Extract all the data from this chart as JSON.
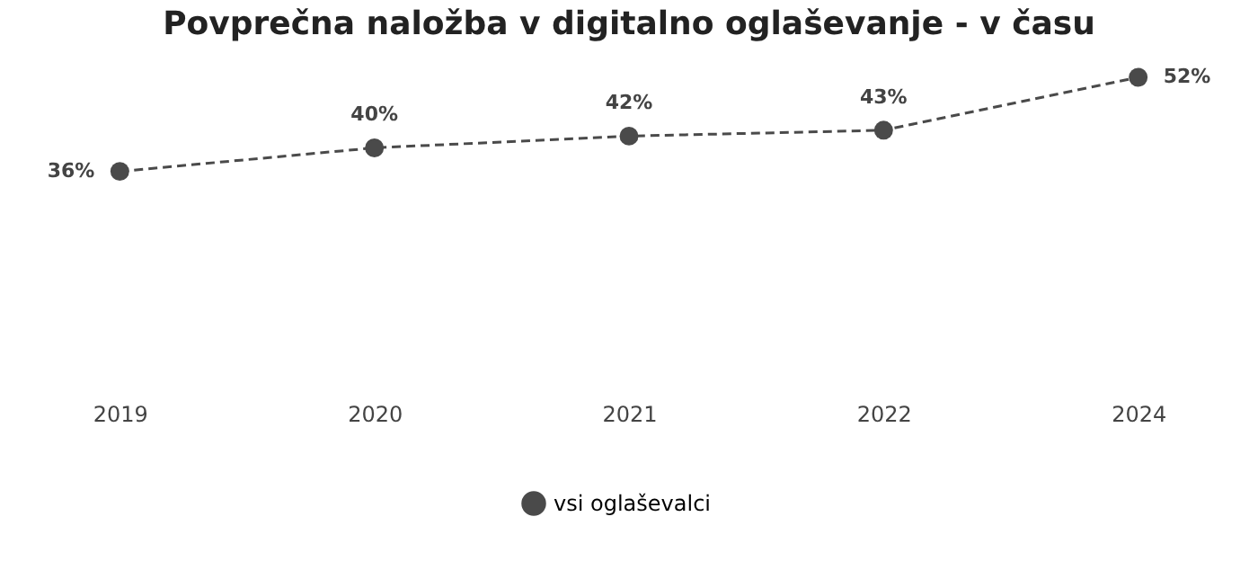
{
  "chart_data": {
    "type": "line",
    "title": "Povprečna naložba v digitalno oglaševanje - v času",
    "categories": [
      "2019",
      "2020",
      "2021",
      "2022",
      "2024"
    ],
    "series": [
      {
        "name": "vsi oglaševalci",
        "color": "#4a4a4a",
        "values": [
          36,
          40,
          42,
          43,
          52
        ],
        "value_labels": [
          "36%",
          "40%",
          "42%",
          "43%",
          "52%"
        ]
      }
    ],
    "tick_labels": "x",
    "grid": false,
    "legend": "bottom",
    "marker": "circle",
    "line_style": "dashed"
  }
}
